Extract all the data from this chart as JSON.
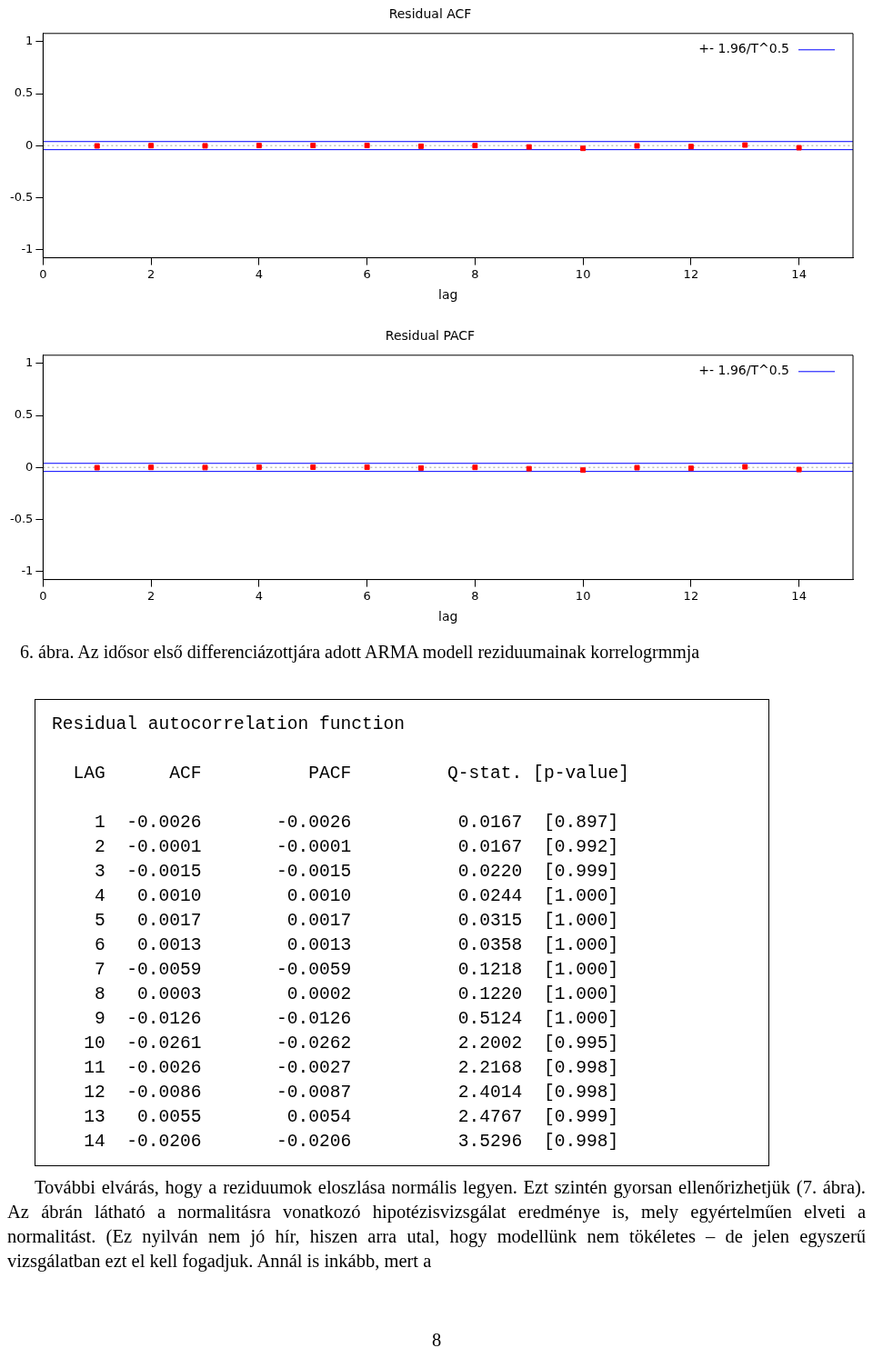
{
  "chart_data": [
    {
      "type": "lollipop",
      "title": "Residual ACF",
      "xlabel": "lag",
      "x": [
        1,
        2,
        3,
        4,
        5,
        6,
        7,
        8,
        9,
        10,
        11,
        12,
        13,
        14
      ],
      "values": [
        -0.0026,
        -0.0001,
        -0.0015,
        0.001,
        0.0017,
        0.0013,
        -0.0059,
        0.0003,
        -0.0126,
        -0.0261,
        -0.0026,
        -0.0086,
        0.0055,
        -0.0206
      ],
      "color": "#ff0000",
      "marker": "square",
      "xlim": [
        0,
        15
      ],
      "xticks": [
        0,
        2,
        4,
        6,
        8,
        10,
        12,
        14
      ],
      "ylim": [
        -1.08,
        1.08
      ],
      "yticks": [
        -1,
        -0.5,
        0,
        0.5,
        1
      ],
      "grid": false,
      "legend": "top right",
      "ref_lines": [
        {
          "axis": "y",
          "value": 0.039,
          "label": "+- 1.96/T^0.5",
          "color": "#0000ff"
        },
        {
          "axis": "y",
          "value": -0.039,
          "color": "#0000ff"
        },
        {
          "axis": "y",
          "value": 0,
          "color": "#a0a0a0",
          "line_style": "dotted"
        }
      ]
    },
    {
      "type": "lollipop",
      "title": "Residual PACF",
      "xlabel": "lag",
      "x": [
        1,
        2,
        3,
        4,
        5,
        6,
        7,
        8,
        9,
        10,
        11,
        12,
        13,
        14
      ],
      "values": [
        -0.0026,
        -0.0001,
        -0.0015,
        0.001,
        0.0017,
        0.0013,
        -0.0059,
        0.0002,
        -0.0126,
        -0.0262,
        -0.0027,
        -0.0087,
        0.0054,
        -0.0206
      ],
      "color": "#ff0000",
      "marker": "square",
      "xlim": [
        0,
        15
      ],
      "xticks": [
        0,
        2,
        4,
        6,
        8,
        10,
        12,
        14
      ],
      "ylim": [
        -1.08,
        1.08
      ],
      "yticks": [
        -1,
        -0.5,
        0,
        0.5,
        1
      ],
      "grid": false,
      "legend": "top right",
      "ref_lines": [
        {
          "axis": "y",
          "value": 0.039,
          "label": "+- 1.96/T^0.5",
          "color": "#0000ff"
        },
        {
          "axis": "y",
          "value": -0.039,
          "color": "#0000ff"
        },
        {
          "axis": "y",
          "value": 0,
          "color": "#a0a0a0",
          "line_style": "dotted"
        }
      ],
      "annotations": [
        "6. ábra. Az idősor első differenciázottjára adott ARMA modell reziduumainak korrelogrmmja"
      ]
    },
    {
      "type": "other",
      "title": "Residual autocorrelation function",
      "annotations": [
        "  LAG      ACF          PACF         Q-stat. [p-value]",
        "    1  -0.0026       -0.0026          0.0167  [0.897]",
        "    2  -0.0001       -0.0001          0.0167  [0.992]",
        "    3  -0.0015       -0.0015          0.0220  [0.999]",
        "    4   0.0010        0.0010          0.0244  [1.000]",
        "    5   0.0017        0.0017          0.0315  [1.000]",
        "    6   0.0013        0.0013          0.0358  [1.000]",
        "    7  -0.0059       -0.0059          0.1218  [1.000]",
        "    8   0.0003        0.0002          0.1220  [1.000]",
        "    9  -0.0126       -0.0126          0.5124  [1.000]",
        "   10  -0.0261       -0.0262          2.2002  [0.995]",
        "   11  -0.0026       -0.0027          2.2168  [0.998]",
        "   12  -0.0086       -0.0087          2.4014  [0.998]",
        "   13   0.0055        0.0054          2.4767  [0.999]",
        "   14  -0.0206       -0.0206          3.5296  [0.998]"
      ]
    },
    {
      "type": "other",
      "annotations": [
        "További elvárás, hogy a reziduumok eloszlása normális legyen. Ezt szintén gyorsan ellenőrizhetjük (7. ábra). Az ábrán látható a normalitásra vonatkozó hipotézisvizsgálat eredménye is, mely egyértelműen elveti a normalitást. (Ez nyilván nem jó hír, hiszen arra utal, hogy modellünk nem tökéletes – de jelen egyszerű vizsgálatban ezt el kell fogadjuk. Annál is inkább, mert a",
        "8"
      ]
    }
  ]
}
